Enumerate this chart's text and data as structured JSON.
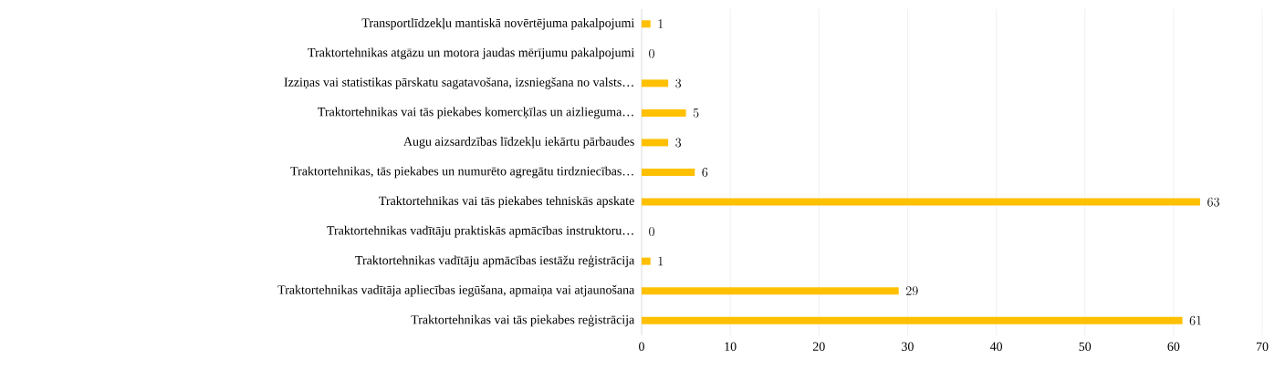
{
  "chart_data": {
    "type": "bar",
    "orientation": "horizontal",
    "categories": [
      "Transportlīdzekļu mantiskā novērtējuma pakalpojumi",
      "Traktortehnikas atgāzu un motora jaudas mērījumu pakalpojumi",
      "Izziņas vai statistikas pārskatu sagatavošana, izsniegšana no valsts…",
      "Traktortehnikas vai tās piekabes komercķīlas un aizlieguma…",
      "Augu aizsardzības līdzekļu iekārtu pārbaudes",
      "Traktortehnikas, tās piekabes un numurēto agregātu tirdzniecības…",
      "Traktortehnikas vai tās piekabes tehniskās apskate",
      "Traktortehnikas vadītāju praktiskās apmācības instruktoru…",
      "Traktortehnikas vadītāju apmācības iestāžu reģistrācija",
      "Traktortehnikas vadītāja apliecības iegūšana, apmaiņa vai atjaunošana",
      "Traktortehnikas vai tās piekabes reģistrācija"
    ],
    "values": [
      1,
      0,
      3,
      5,
      3,
      6,
      63,
      0,
      1,
      29,
      61
    ],
    "color": "#ffc000",
    "xlim": [
      0,
      70
    ],
    "xticks": [
      0,
      10,
      20,
      30,
      40,
      50,
      60,
      70
    ],
    "grid": "x",
    "data_labels": true
  }
}
